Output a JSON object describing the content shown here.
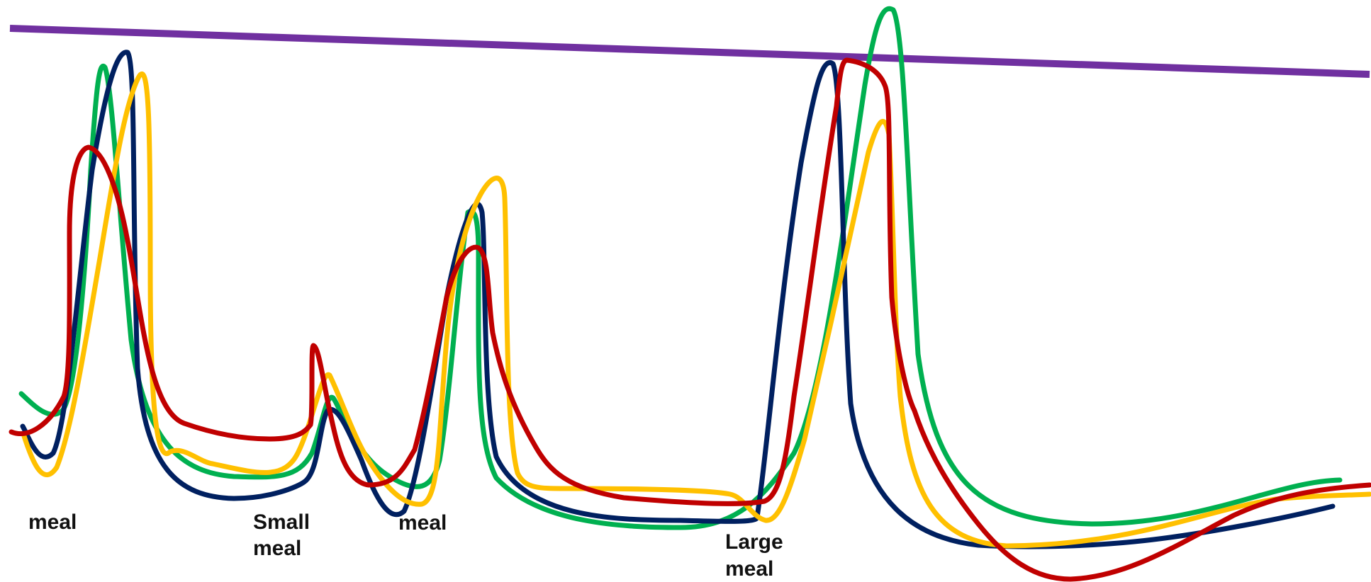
{
  "chart_data": {
    "type": "line",
    "title": "",
    "xlabel": "",
    "ylabel": "",
    "grid": false,
    "axes_shown": false,
    "legend": "none",
    "annotations": [
      {
        "id": "meal-1",
        "lines": [
          "meal"
        ]
      },
      {
        "id": "meal-2",
        "lines": [
          "Small",
          "meal"
        ]
      },
      {
        "id": "meal-3",
        "lines": [
          "meal"
        ]
      },
      {
        "id": "meal-4",
        "lines": [
          "Large",
          "meal"
        ]
      }
    ],
    "threshold": {
      "color": "#7030a0"
    },
    "series": [
      {
        "color": "#00b050"
      },
      {
        "color": "#002060"
      },
      {
        "color": "#ffc000"
      },
      {
        "color": "#c00000"
      }
    ]
  }
}
